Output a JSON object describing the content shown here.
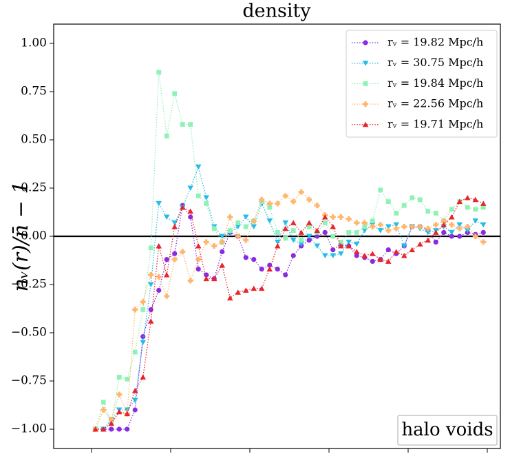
{
  "chart_data": {
    "type": "line",
    "title": "density",
    "y_label": "nᵥ(r)/n̄ − 1",
    "annotation": "halo voids",
    "x": [
      0.05,
      0.15,
      0.25,
      0.35,
      0.45,
      0.55,
      0.65,
      0.75,
      0.85,
      0.95,
      1.05,
      1.15,
      1.25,
      1.35,
      1.45,
      1.55,
      1.65,
      1.75,
      1.85,
      1.95,
      2.05,
      2.15,
      2.25,
      2.35,
      2.45,
      2.55,
      2.65,
      2.75,
      2.85,
      2.95,
      3.05,
      3.15,
      3.25,
      3.35,
      3.45,
      3.55,
      3.65,
      3.75,
      3.85,
      3.95,
      4.05,
      4.15,
      4.25,
      4.35,
      4.45,
      4.55,
      4.65,
      4.75,
      4.85,
      4.95
    ],
    "series": [
      {
        "name": "rᵥ = 19.82 Mpc/h",
        "color": "#8a2be2",
        "marker": "circle",
        "values": [
          -1,
          -1,
          -1,
          -1,
          -1,
          -0.9,
          -0.52,
          -0.38,
          -0.28,
          -0.12,
          -0.09,
          0.16,
          0.1,
          -0.17,
          -0.2,
          -0.22,
          -0.08,
          0.02,
          0,
          -0.11,
          -0.12,
          -0.17,
          -0.15,
          -0.17,
          -0.2,
          -0.1,
          -0.05,
          -0.02,
          0,
          0.02,
          -0.07,
          -0.04,
          -0.05,
          -0.1,
          -0.11,
          -0.13,
          -0.12,
          -0.07,
          -0.09,
          -0.05,
          0.05,
          0.05,
          0.03,
          -0.03,
          0.02,
          0,
          0,
          0.02,
          0.01,
          0.02
        ]
      },
      {
        "name": "rᵥ = 30.75 Mpc/h",
        "color": "#22bde8",
        "marker": "triangle-down",
        "values": [
          -1,
          -1,
          -0.95,
          -0.9,
          -0.9,
          -0.85,
          -0.55,
          -0.25,
          0.17,
          0.1,
          0.07,
          0.15,
          0.25,
          0.36,
          0.2,
          0.05,
          0,
          0.02,
          0.05,
          0.1,
          0.05,
          0.17,
          0.08,
          -0.03,
          0.07,
          -0.02,
          -0.04,
          0,
          -0.05,
          -0.1,
          -0.1,
          -0.09,
          -0.03,
          -0.04,
          0.03,
          0.06,
          0.03,
          0.05,
          0.06,
          -0.05,
          0.05,
          0.04,
          0.02,
          0.03,
          0.05,
          0.02,
          0.06,
          0.03,
          0.08,
          0.06
        ]
      },
      {
        "name": "rᵥ = 19.84 Mpc/h",
        "color": "#8ff2b5",
        "marker": "square",
        "values": [
          -1,
          -0.86,
          -0.97,
          -0.73,
          -0.74,
          -0.6,
          -0.38,
          -0.06,
          0.85,
          0.52,
          0.74,
          0.58,
          0.58,
          0.21,
          0.17,
          0.04,
          -0.03,
          0.03,
          0.07,
          0.05,
          0.08,
          0.18,
          0.15,
          0.02,
          -0.01,
          0.03,
          -0.02,
          0.05,
          0.02,
          0.07,
          0,
          -0.03,
          0.02,
          0.02,
          0.05,
          0.08,
          0.24,
          0.18,
          0.12,
          0.16,
          0.2,
          0.19,
          0.13,
          0.12,
          0.08,
          0.14,
          0.18,
          0.15,
          0.14,
          0.15
        ]
      },
      {
        "name": "rᵥ = 22.56 Mpc/h",
        "color": "#ffb56b",
        "marker": "plus",
        "values": [
          -1,
          -0.9,
          -0.95,
          -0.82,
          -0.92,
          -0.38,
          -0.34,
          -0.2,
          -0.21,
          -0.31,
          -0.12,
          -0.08,
          -0.23,
          -0.12,
          -0.03,
          -0.05,
          -0.03,
          0.1,
          0,
          -0.02,
          0.08,
          0.19,
          0.17,
          0.17,
          0.21,
          0.18,
          0.23,
          0.19,
          0.16,
          0.11,
          0.1,
          0.1,
          0.09,
          0.07,
          0.07,
          0.05,
          0.06,
          0.03,
          0.04,
          0.05,
          0.05,
          0.05,
          0.04,
          0.06,
          0.08,
          0.06,
          0.04,
          0.05,
          0,
          -0.03
        ]
      },
      {
        "name": "rᵥ = 19.71 Mpc/h",
        "color": "#e8252a",
        "marker": "triangle-up",
        "values": [
          -1,
          -1,
          -0.97,
          -0.91,
          -0.92,
          -0.8,
          -0.73,
          -0.44,
          -0.05,
          -0.2,
          0.05,
          0.15,
          0.13,
          -0.05,
          -0.22,
          -0.22,
          -0.15,
          -0.32,
          -0.29,
          -0.28,
          -0.27,
          -0.27,
          -0.17,
          -0.05,
          0.04,
          0.07,
          0.02,
          0.07,
          0.03,
          0.1,
          0.05,
          -0.05,
          -0.05,
          -0.08,
          -0.1,
          -0.09,
          -0.12,
          -0.13,
          -0.08,
          -0.1,
          -0.07,
          -0.04,
          -0.02,
          0.02,
          0.06,
          0.1,
          0.18,
          0.2,
          0.19,
          0.17
        ]
      }
    ],
    "xlim": [
      -0.478,
      5.165
    ],
    "xticks": [
      0,
      1,
      2,
      3,
      4,
      5
    ],
    "ylim": [
      -1.1,
      1.1
    ],
    "yticks": [
      {
        "value": -1,
        "label": "−1.00"
      },
      {
        "value": -0.75,
        "label": "−0.75"
      },
      {
        "value": -0.5,
        "label": "−0.50"
      },
      {
        "value": -0.25,
        "label": "−0.25"
      },
      {
        "value": 0,
        "label": "0.00"
      },
      {
        "value": 0.25,
        "label": "0.25"
      },
      {
        "value": 0.5,
        "label": "0.50"
      },
      {
        "value": 0.75,
        "label": "0.75"
      },
      {
        "value": 1,
        "label": "1.00"
      }
    ],
    "axhline": 0,
    "legend": "upper right"
  }
}
